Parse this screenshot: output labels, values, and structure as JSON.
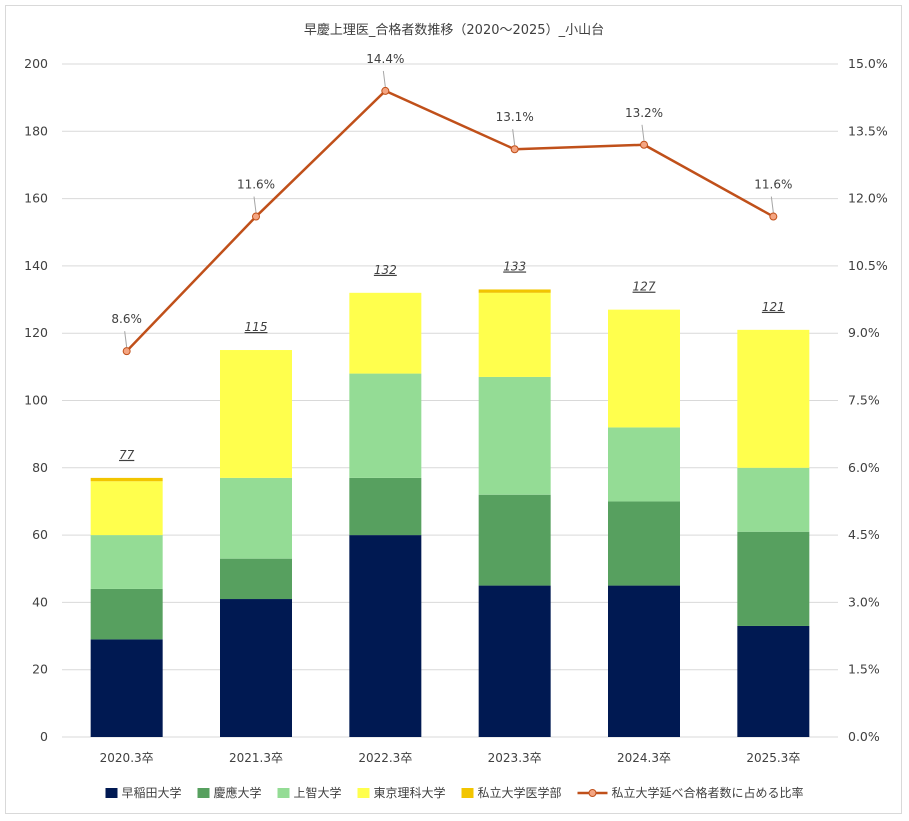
{
  "chart_data": {
    "type": "bar",
    "stacked": true,
    "title": "早慶上理医_合格者数推移（2020～2025）_小山台",
    "categories": [
      "2020.3卒",
      "2021.3卒",
      "2022.3卒",
      "2023.3卒",
      "2024.3卒",
      "2025.3卒"
    ],
    "series": [
      {
        "name": "早稲田大学",
        "color": "#001952",
        "values": [
          29,
          41,
          60,
          45,
          45,
          33
        ]
      },
      {
        "name": "慶應大学",
        "color": "#57a05f",
        "values": [
          15,
          12,
          17,
          27,
          25,
          28
        ]
      },
      {
        "name": "上智大学",
        "color": "#94dc95",
        "values": [
          16,
          24,
          31,
          35,
          22,
          19
        ]
      },
      {
        "name": "東京理科大学",
        "color": "#ffff4d",
        "values": [
          16,
          38,
          24,
          25,
          35,
          41
        ]
      },
      {
        "name": "私立大学医学部",
        "color": "#f2c500",
        "values": [
          1,
          0,
          0,
          1,
          0,
          0
        ]
      }
    ],
    "totals": [
      77,
      115,
      132,
      133,
      127,
      121
    ],
    "total_labels": [
      "77",
      "115",
      "132",
      "133",
      "127",
      "121"
    ],
    "line_series": {
      "name": "私立大学延べ合格者数に占める比率",
      "color": "#c0501a",
      "marker_fill": "#f4a582",
      "values": [
        8.6,
        11.6,
        14.4,
        13.1,
        13.2,
        11.6
      ],
      "labels": [
        "8.6%",
        "11.6%",
        "14.4%",
        "13.1%",
        "13.2%",
        "11.6%"
      ],
      "axis": "right"
    },
    "y_left": {
      "min": 0,
      "max": 200,
      "ticks": [
        "0",
        "20",
        "40",
        "60",
        "80",
        "100",
        "120",
        "140",
        "160",
        "180",
        "200"
      ]
    },
    "y_right": {
      "min": 0,
      "max": 15,
      "ticks": [
        "0.0%",
        "1.5%",
        "3.0%",
        "4.5%",
        "6.0%",
        "7.5%",
        "9.0%",
        "10.5%",
        "12.0%",
        "13.5%",
        "15.0%"
      ]
    },
    "grid": true,
    "legend_position": "bottom"
  }
}
